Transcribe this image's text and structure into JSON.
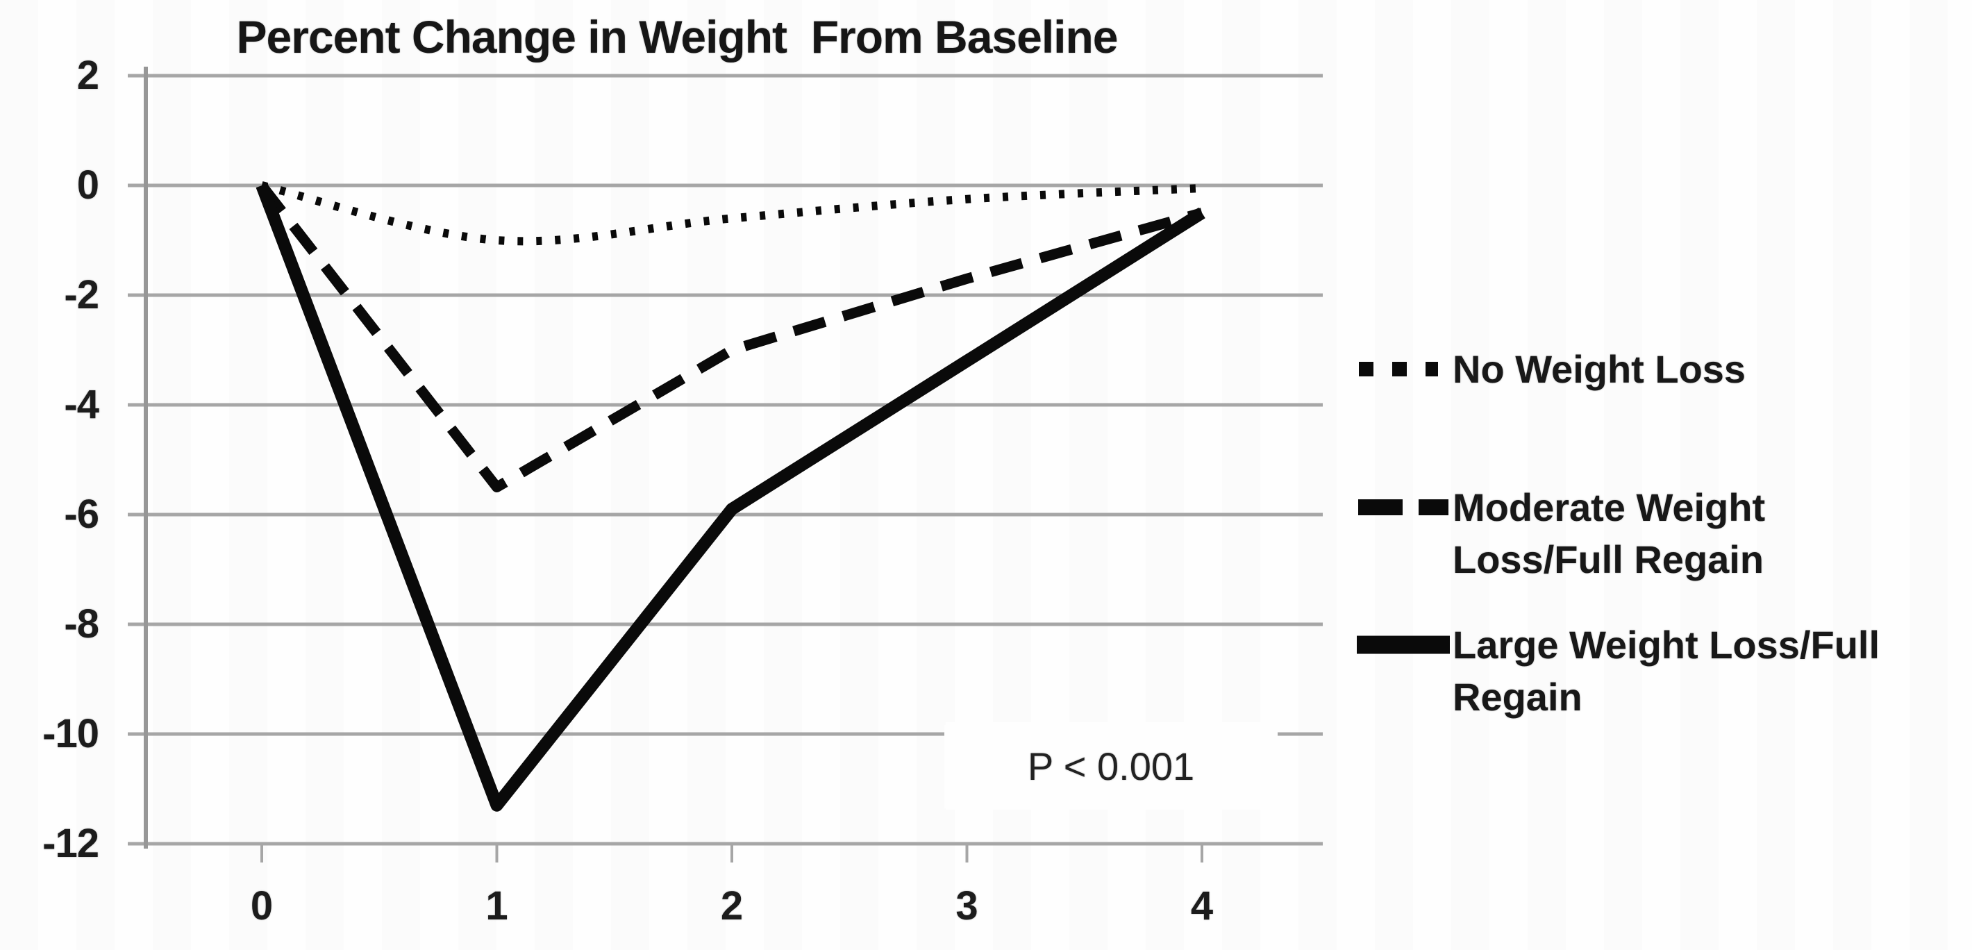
{
  "page": {
    "background": "#fefefe",
    "text_color": "#1a1a1a"
  },
  "chart_data": {
    "type": "line",
    "title": "Percent Change in Weight  From Baseline",
    "xlabel": "",
    "ylabel": "",
    "x": [
      0,
      1,
      2,
      3,
      4
    ],
    "x_tick_labels": [
      "0",
      "1",
      "2",
      "3",
      "4"
    ],
    "y_ticks": [
      2,
      0,
      -2,
      -4,
      -6,
      -8,
      -10,
      -12
    ],
    "y_tick_labels": [
      "2",
      "0",
      "-2",
      "-4",
      "-6",
      "-8",
      "-10",
      "-12"
    ],
    "ylim": [
      -12,
      2
    ],
    "xlim": [
      0,
      4
    ],
    "grid": true,
    "legend_position": "right",
    "annotation": "P < 0.001",
    "series": [
      {
        "name": "No Weight Loss",
        "style": "dotted",
        "smooth": true,
        "values": [
          0,
          -1,
          -0.6,
          -0.25,
          -0.05
        ]
      },
      {
        "name": "Moderate Weight Loss/Full Regain",
        "style": "dashed",
        "smooth": false,
        "values": [
          0,
          -5.5,
          -3,
          -1.7,
          -0.5
        ]
      },
      {
        "name": "Large Weight Loss/Full Regain",
        "style": "solid",
        "smooth": false,
        "values": [
          0,
          -11.3,
          -5.9,
          -3.2,
          -0.5
        ]
      }
    ],
    "colors": {
      "line": "#0a0a0a",
      "grid": "#a6a6a6",
      "axis": "#979797",
      "text": "#1a1a1a"
    }
  },
  "legend": {
    "items": [
      {
        "style": "dotted",
        "lines": [
          "No Weight Loss"
        ]
      },
      {
        "style": "dashed",
        "lines": [
          "Moderate Weight",
          "Loss/Full Regain"
        ]
      },
      {
        "style": "solid",
        "lines": [
          "Large Weight Loss/Full",
          "Regain"
        ]
      }
    ]
  }
}
